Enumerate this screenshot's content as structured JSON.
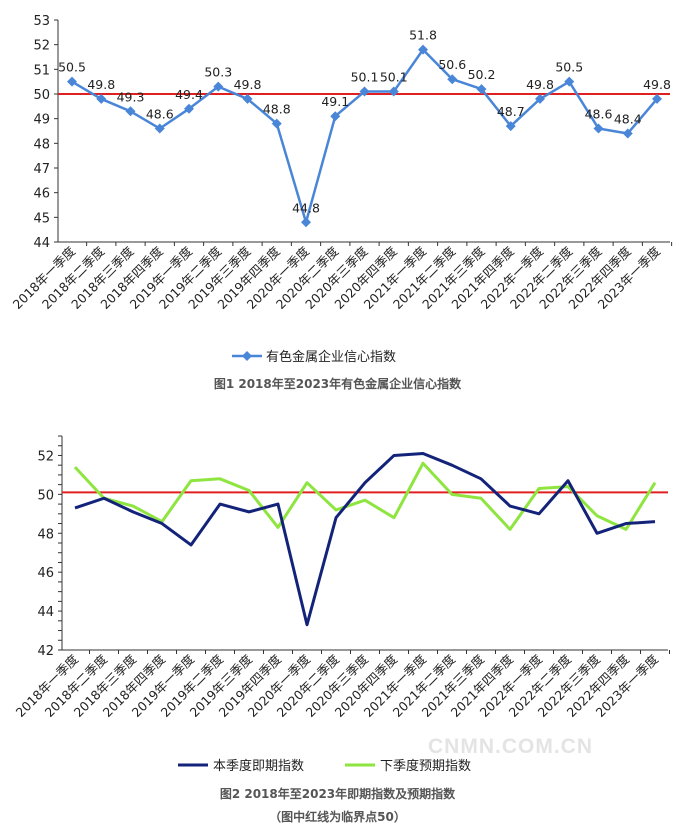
{
  "chart_data": [
    {
      "type": "line",
      "title": "",
      "caption": "图1 2018年至2023年有色金属企业信心指数",
      "categories": [
        "2018年一季度",
        "2018年二季度",
        "2018年三季度",
        "2018年四季度",
        "2019年一季度",
        "2019年二季度",
        "2019年三季度",
        "2019年四季度",
        "2020年一季度",
        "2020年二季度",
        "2020年三季度",
        "2020年四季度",
        "2021年一季度",
        "2021年二季度",
        "2021年三季度",
        "2021年四季度",
        "2022年一季度",
        "2022年二季度",
        "2022年三季度",
        "2022年四季度",
        "2023年一季度"
      ],
      "series": [
        {
          "name": "有色金属企业信心指数",
          "color": "#4a86d8",
          "values": [
            50.5,
            49.8,
            49.3,
            48.6,
            49.4,
            50.3,
            49.8,
            48.8,
            44.8,
            49.1,
            50.1,
            50.1,
            51.8,
            50.6,
            50.2,
            48.7,
            49.8,
            50.5,
            48.6,
            48.4,
            49.8
          ]
        }
      ],
      "reference_line": {
        "value": 50,
        "color": "#e02020"
      },
      "ylim": [
        44,
        53
      ],
      "yticks": [
        44,
        45,
        46,
        47,
        48,
        49,
        50,
        51,
        52,
        53
      ],
      "legend": "bottom",
      "data_labels": true,
      "grid": false
    },
    {
      "type": "line",
      "title": "",
      "caption": "图2 2018年至2023年即期指数及预期指数",
      "note": "（图中红线为临界点50）",
      "categories": [
        "2018年一季度",
        "2018年二季度",
        "2018年三季度",
        "2018年四季度",
        "2019年一季度",
        "2019年二季度",
        "2019年三季度",
        "2019年四季度",
        "2020年一季度",
        "2020年二季度",
        "2020年三季度",
        "2020年四季度",
        "2021年一季度",
        "2021年二季度",
        "2021年三季度",
        "2021年四季度",
        "2022年一季度",
        "2022年二季度",
        "2022年三季度",
        "2022年四季度",
        "2023年一季度"
      ],
      "series": [
        {
          "name": "本季度即期指数",
          "color": "#14237a",
          "values": [
            49.3,
            49.8,
            49.1,
            48.5,
            47.4,
            49.5,
            49.1,
            49.5,
            43.3,
            48.8,
            50.6,
            52.0,
            52.1,
            51.5,
            50.8,
            49.4,
            49.0,
            50.7,
            48.0,
            48.5,
            48.6
          ]
        },
        {
          "name": "下季度预期指数",
          "color": "#8ee53f",
          "values": [
            51.4,
            49.8,
            49.4,
            48.6,
            50.7,
            50.8,
            50.2,
            48.3,
            50.6,
            49.2,
            49.7,
            48.8,
            51.6,
            50.0,
            49.8,
            48.2,
            50.3,
            50.4,
            48.9,
            48.2,
            50.6
          ]
        }
      ],
      "reference_line": {
        "value": 50,
        "color": "#e02020"
      },
      "ylim": [
        42,
        53
      ],
      "yticks": [
        42,
        44,
        46,
        48,
        50,
        52
      ],
      "legend": "bottom",
      "grid": false
    }
  ],
  "watermark": "CNMN.COM.CN"
}
